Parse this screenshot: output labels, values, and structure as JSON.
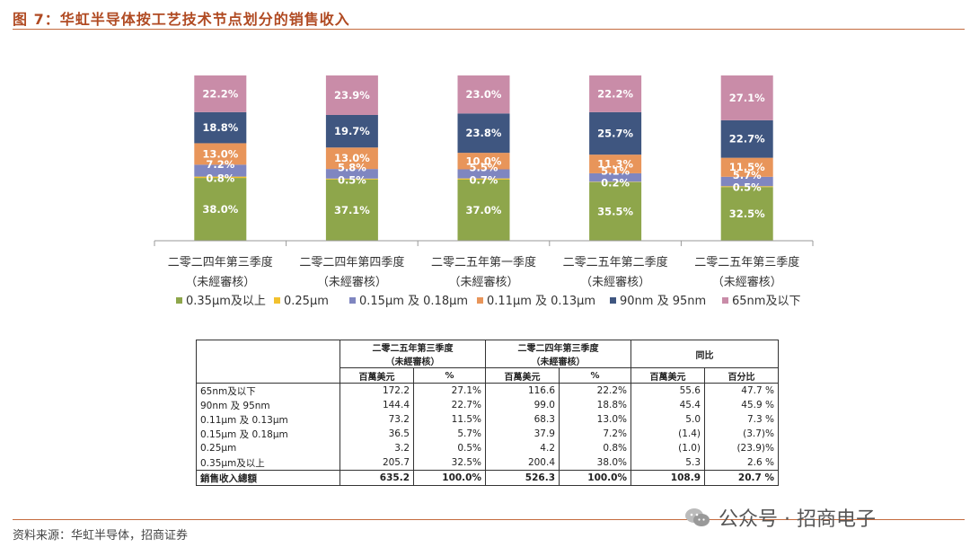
{
  "figure_title": "图 7：华虹半导体按工艺技术节点划分的销售收入",
  "source": "资料来源：华虹半导体，招商证券",
  "watermark": "公众号 · 招商电子",
  "chart_data": {
    "type": "bar",
    "stacked": true,
    "categories": [
      [
        "二零二四年第三季度",
        "（未經審核）"
      ],
      [
        "二零二四年第四季度",
        "（未經審核）"
      ],
      [
        "二零二五年第一季度",
        "（未經審核）"
      ],
      [
        "二零二五年第二季度",
        "（未經審核）"
      ],
      [
        "二零二五年第三季度",
        "（未經審核）"
      ]
    ],
    "series": [
      {
        "name": "0.35μm及以上",
        "color": "#8ea64b",
        "values": [
          38.0,
          37.1,
          37.0,
          35.5,
          32.5
        ]
      },
      {
        "name": "0.25μm",
        "color": "#f2c12e",
        "values": [
          0.8,
          0.5,
          0.7,
          0.2,
          0.5
        ]
      },
      {
        "name": "0.15μm 及 0.18μm",
        "color": "#7f86c0",
        "values": [
          7.2,
          5.8,
          5.5,
          5.1,
          5.7
        ]
      },
      {
        "name": "0.11μm 及 0.13μm",
        "color": "#e8955a",
        "values": [
          13.0,
          13.0,
          10.0,
          11.3,
          11.5
        ]
      },
      {
        "name": "90nm 及 95nm",
        "color": "#3f5680",
        "values": [
          18.8,
          19.7,
          23.8,
          25.7,
          22.7
        ]
      },
      {
        "name": "65nm及以下",
        "color": "#c98ca8",
        "values": [
          22.2,
          23.9,
          23.0,
          22.2,
          27.1
        ]
      }
    ],
    "ylim": [
      0,
      100
    ],
    "legend_position": "bottom",
    "grid": false
  },
  "table": {
    "group_headers": [
      [
        "二零二五年第三季度",
        "（未經審核）"
      ],
      [
        "二零二四年第三季度",
        "（未經審核）"
      ],
      [
        "同比"
      ]
    ],
    "sub_headers": [
      "百萬美元",
      "%",
      "百萬美元",
      "%",
      "百萬美元",
      "百分比"
    ],
    "rows": [
      [
        "65nm及以下",
        "172.2",
        "27.1%",
        "116.6",
        "22.2%",
        "55.6",
        "47.7 %"
      ],
      [
        "90nm 及 95nm",
        "144.4",
        "22.7%",
        "99.0",
        "18.8%",
        "45.4",
        "45.9 %"
      ],
      [
        "0.11μm 及 0.13μm",
        "73.2",
        "11.5%",
        "68.3",
        "13.0%",
        "5.0",
        "7.3 %"
      ],
      [
        "0.15μm 及 0.18μm",
        "36.5",
        "5.7%",
        "37.9",
        "7.2%",
        "(1.4)",
        "(3.7)%"
      ],
      [
        "0.25μm",
        "3.2",
        "0.5%",
        "4.2",
        "0.8%",
        "(1.0)",
        "(23.9)%"
      ],
      [
        "0.35μm及以上",
        "205.7",
        "32.5%",
        "200.4",
        "38.0%",
        "5.3",
        "2.6 %"
      ]
    ],
    "total": [
      "銷售收入總額",
      "635.2",
      "100.0%",
      "526.3",
      "100.0%",
      "108.9",
      "20.7 %"
    ]
  }
}
